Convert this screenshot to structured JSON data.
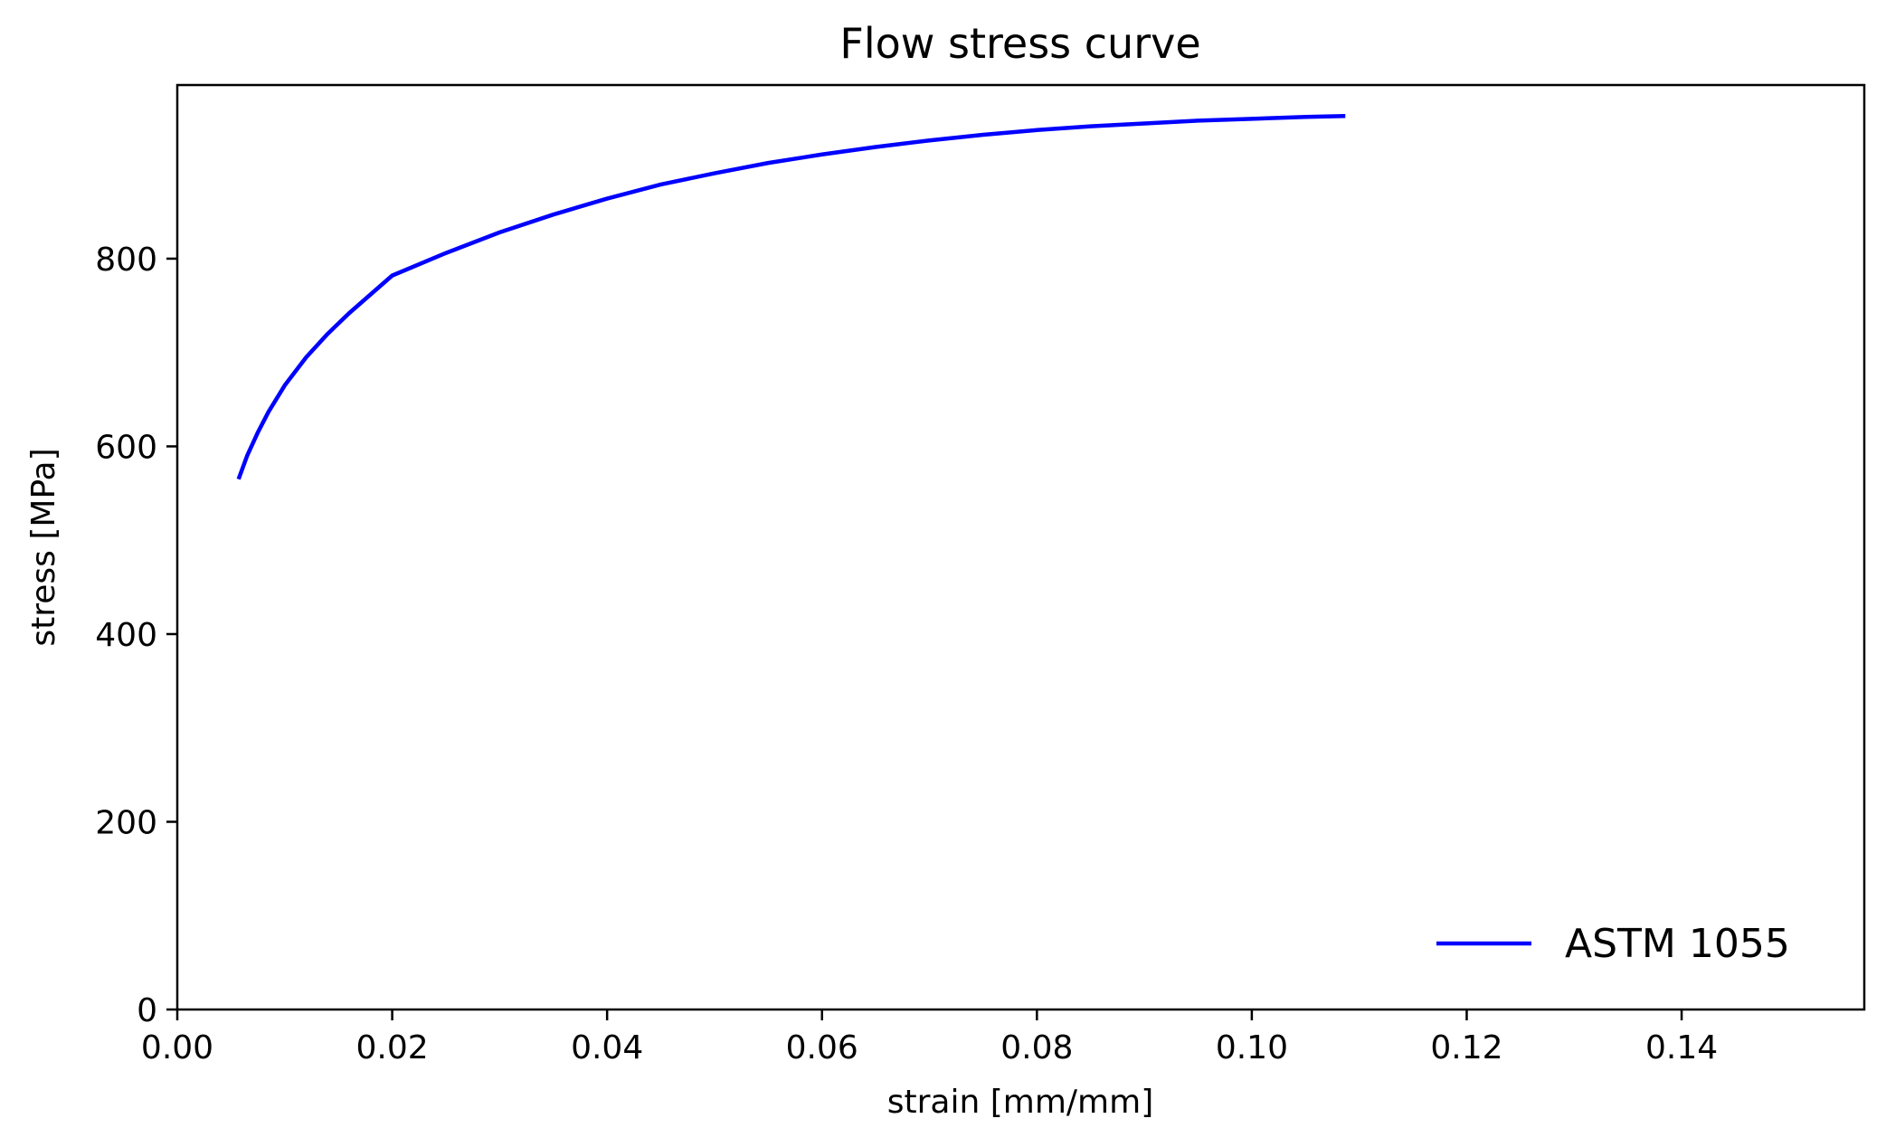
{
  "chart_data": {
    "type": "line",
    "title": "Flow stress curve",
    "xlabel": "strain [mm/mm]",
    "ylabel": "stress [MPa]",
    "xlim": [
      0,
      0.157
    ],
    "ylim": [
      0,
      985
    ],
    "xticks": [
      0.0,
      0.02,
      0.04,
      0.06,
      0.08,
      0.1,
      0.12,
      0.14
    ],
    "xtick_labels": [
      "0.00",
      "0.02",
      "0.04",
      "0.06",
      "0.08",
      "0.10",
      "0.12",
      "0.14"
    ],
    "yticks": [
      0,
      200,
      400,
      600,
      800
    ],
    "ytick_labels": [
      "0",
      "200",
      "400",
      "600",
      "800"
    ],
    "grid": false,
    "legend_position": "bottom-right",
    "series": [
      {
        "name": "ASTM 1055",
        "color": "#0000ff",
        "x": [
          0.0057,
          0.0065,
          0.0075,
          0.0085,
          0.01,
          0.012,
          0.014,
          0.016,
          0.018,
          0.02,
          0.025,
          0.03,
          0.035,
          0.04,
          0.045,
          0.05,
          0.055,
          0.06,
          0.065,
          0.07,
          0.075,
          0.08,
          0.085,
          0.09,
          0.095,
          0.1,
          0.105,
          0.1087
        ],
        "y": [
          565,
          590,
          615,
          637,
          665,
          695,
          720,
          742,
          762,
          782,
          806,
          828,
          847,
          864,
          879,
          891,
          902,
          911,
          919,
          926,
          932,
          937,
          941,
          944,
          947,
          949,
          951,
          952
        ]
      }
    ]
  }
}
